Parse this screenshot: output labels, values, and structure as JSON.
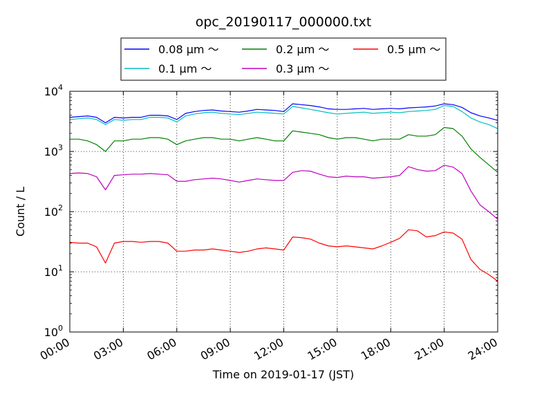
{
  "chart_data": {
    "type": "line",
    "title": "opc_20190117_000000.txt",
    "xlabel": "Time on 2019-01-17 (JST)",
    "ylabel": "Count / L",
    "yscale": "log",
    "ylim": [
      1,
      10000
    ],
    "xlim": [
      "00:00",
      "24:00"
    ],
    "x_ticks": [
      "00:00",
      "03:00",
      "06:00",
      "09:00",
      "12:00",
      "15:00",
      "18:00",
      "21:00",
      "24:00"
    ],
    "y_ticks": [
      {
        "value": 1,
        "base": "10",
        "exp": "0"
      },
      {
        "value": 10,
        "base": "10",
        "exp": "1"
      },
      {
        "value": 100,
        "base": "10",
        "exp": "2"
      },
      {
        "value": 1000,
        "base": "10",
        "exp": "3"
      },
      {
        "value": 10000,
        "base": "10",
        "exp": "4"
      }
    ],
    "grid": true,
    "legend_position": "top-center",
    "x": [
      "00:00",
      "00:30",
      "01:00",
      "01:30",
      "02:00",
      "02:30",
      "03:00",
      "03:30",
      "04:00",
      "04:30",
      "05:00",
      "05:30",
      "06:00",
      "06:30",
      "07:00",
      "07:30",
      "08:00",
      "08:30",
      "09:00",
      "09:30",
      "10:00",
      "10:30",
      "11:00",
      "11:30",
      "12:00",
      "12:30",
      "13:00",
      "13:30",
      "14:00",
      "14:30",
      "15:00",
      "15:30",
      "16:00",
      "16:30",
      "17:00",
      "17:30",
      "18:00",
      "18:30",
      "19:00",
      "19:30",
      "20:00",
      "20:30",
      "21:00",
      "21:30",
      "22:00",
      "22:30",
      "23:00",
      "23:30",
      "24:00"
    ],
    "series": [
      {
        "name": "0.08 μm ～",
        "color": "#0000ff",
        "values": [
          3700,
          3800,
          3900,
          3700,
          3000,
          3700,
          3600,
          3700,
          3700,
          4000,
          4000,
          3900,
          3400,
          4300,
          4600,
          4800,
          4900,
          4700,
          4600,
          4500,
          4700,
          5000,
          4900,
          4800,
          4600,
          6200,
          6000,
          5800,
          5500,
          5100,
          5000,
          5000,
          5100,
          5200,
          5000,
          5100,
          5200,
          5100,
          5300,
          5400,
          5500,
          5700,
          6200,
          6000,
          5400,
          4400,
          3900,
          3600,
          3300
        ]
      },
      {
        "name": "0.1 μm ～",
        "color": "#00bfbf",
        "values": [
          3400,
          3500,
          3600,
          3400,
          2800,
          3400,
          3300,
          3400,
          3400,
          3700,
          3700,
          3600,
          3100,
          3900,
          4200,
          4400,
          4500,
          4300,
          4200,
          4100,
          4300,
          4500,
          4400,
          4300,
          4200,
          5600,
          5300,
          5000,
          4700,
          4400,
          4200,
          4300,
          4400,
          4500,
          4300,
          4400,
          4500,
          4400,
          4600,
          4700,
          4800,
          5000,
          5800,
          5600,
          4600,
          3600,
          3100,
          2800,
          2400
        ]
      },
      {
        "name": "0.2 μm ～",
        "color": "#008000",
        "values": [
          1600,
          1600,
          1500,
          1300,
          1000,
          1500,
          1500,
          1600,
          1600,
          1700,
          1700,
          1600,
          1300,
          1500,
          1600,
          1700,
          1700,
          1600,
          1600,
          1500,
          1600,
          1700,
          1600,
          1500,
          1500,
          2200,
          2100,
          2000,
          1900,
          1700,
          1600,
          1700,
          1700,
          1600,
          1500,
          1600,
          1600,
          1600,
          1900,
          1800,
          1800,
          1900,
          2500,
          2400,
          1800,
          1100,
          800,
          600,
          450
        ]
      },
      {
        "name": "0.3 μm ～",
        "color": "#bf00bf",
        "values": [
          430,
          440,
          430,
          380,
          230,
          400,
          410,
          420,
          420,
          430,
          420,
          410,
          320,
          320,
          340,
          350,
          360,
          350,
          330,
          310,
          330,
          350,
          340,
          330,
          330,
          450,
          480,
          470,
          420,
          380,
          370,
          390,
          380,
          380,
          360,
          370,
          380,
          400,
          560,
          500,
          470,
          480,
          590,
          550,
          430,
          220,
          130,
          100,
          75
        ]
      },
      {
        "name": "0.5 μm ～",
        "color": "#ff0000",
        "values": [
          31,
          30,
          30,
          26,
          14,
          30,
          32,
          32,
          31,
          32,
          32,
          30,
          22,
          22,
          23,
          23,
          24,
          23,
          22,
          21,
          22,
          24,
          25,
          24,
          23,
          38,
          37,
          35,
          30,
          27,
          26,
          27,
          26,
          25,
          24,
          27,
          31,
          36,
          50,
          48,
          38,
          40,
          46,
          44,
          35,
          16,
          11,
          9,
          7
        ]
      }
    ]
  }
}
